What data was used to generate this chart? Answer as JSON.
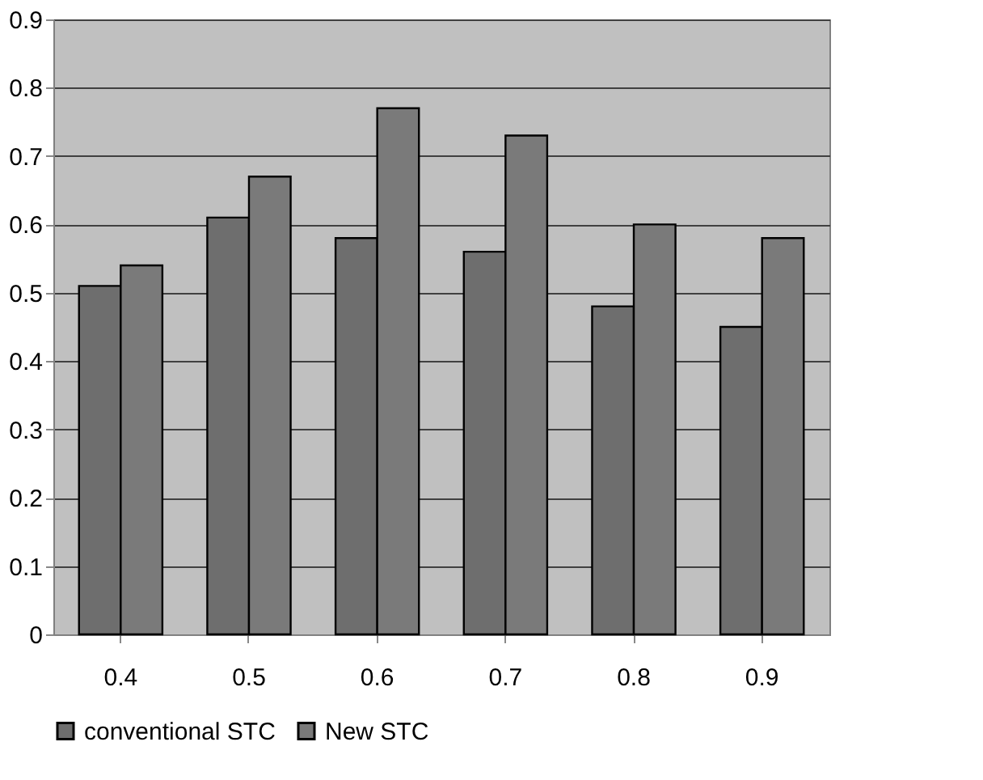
{
  "chart_data": {
    "type": "bar",
    "categories": [
      "0.4",
      "0.5",
      "0.6",
      "0.7",
      "0.8",
      "0.9"
    ],
    "series": [
      {
        "name": "conventional STC",
        "color": "#6e6e6e",
        "values": [
          0.51,
          0.61,
          0.58,
          0.56,
          0.48,
          0.45
        ]
      },
      {
        "name": "New STC",
        "color": "#7a7a7a",
        "values": [
          0.54,
          0.67,
          0.77,
          0.73,
          0.6,
          0.58
        ]
      }
    ],
    "ylim": [
      0,
      0.9
    ],
    "yticks": [
      0,
      0.1,
      0.2,
      0.3,
      0.4,
      0.5,
      0.6,
      0.7,
      0.8,
      0.9
    ],
    "grid": "y",
    "legend": "bottom"
  }
}
